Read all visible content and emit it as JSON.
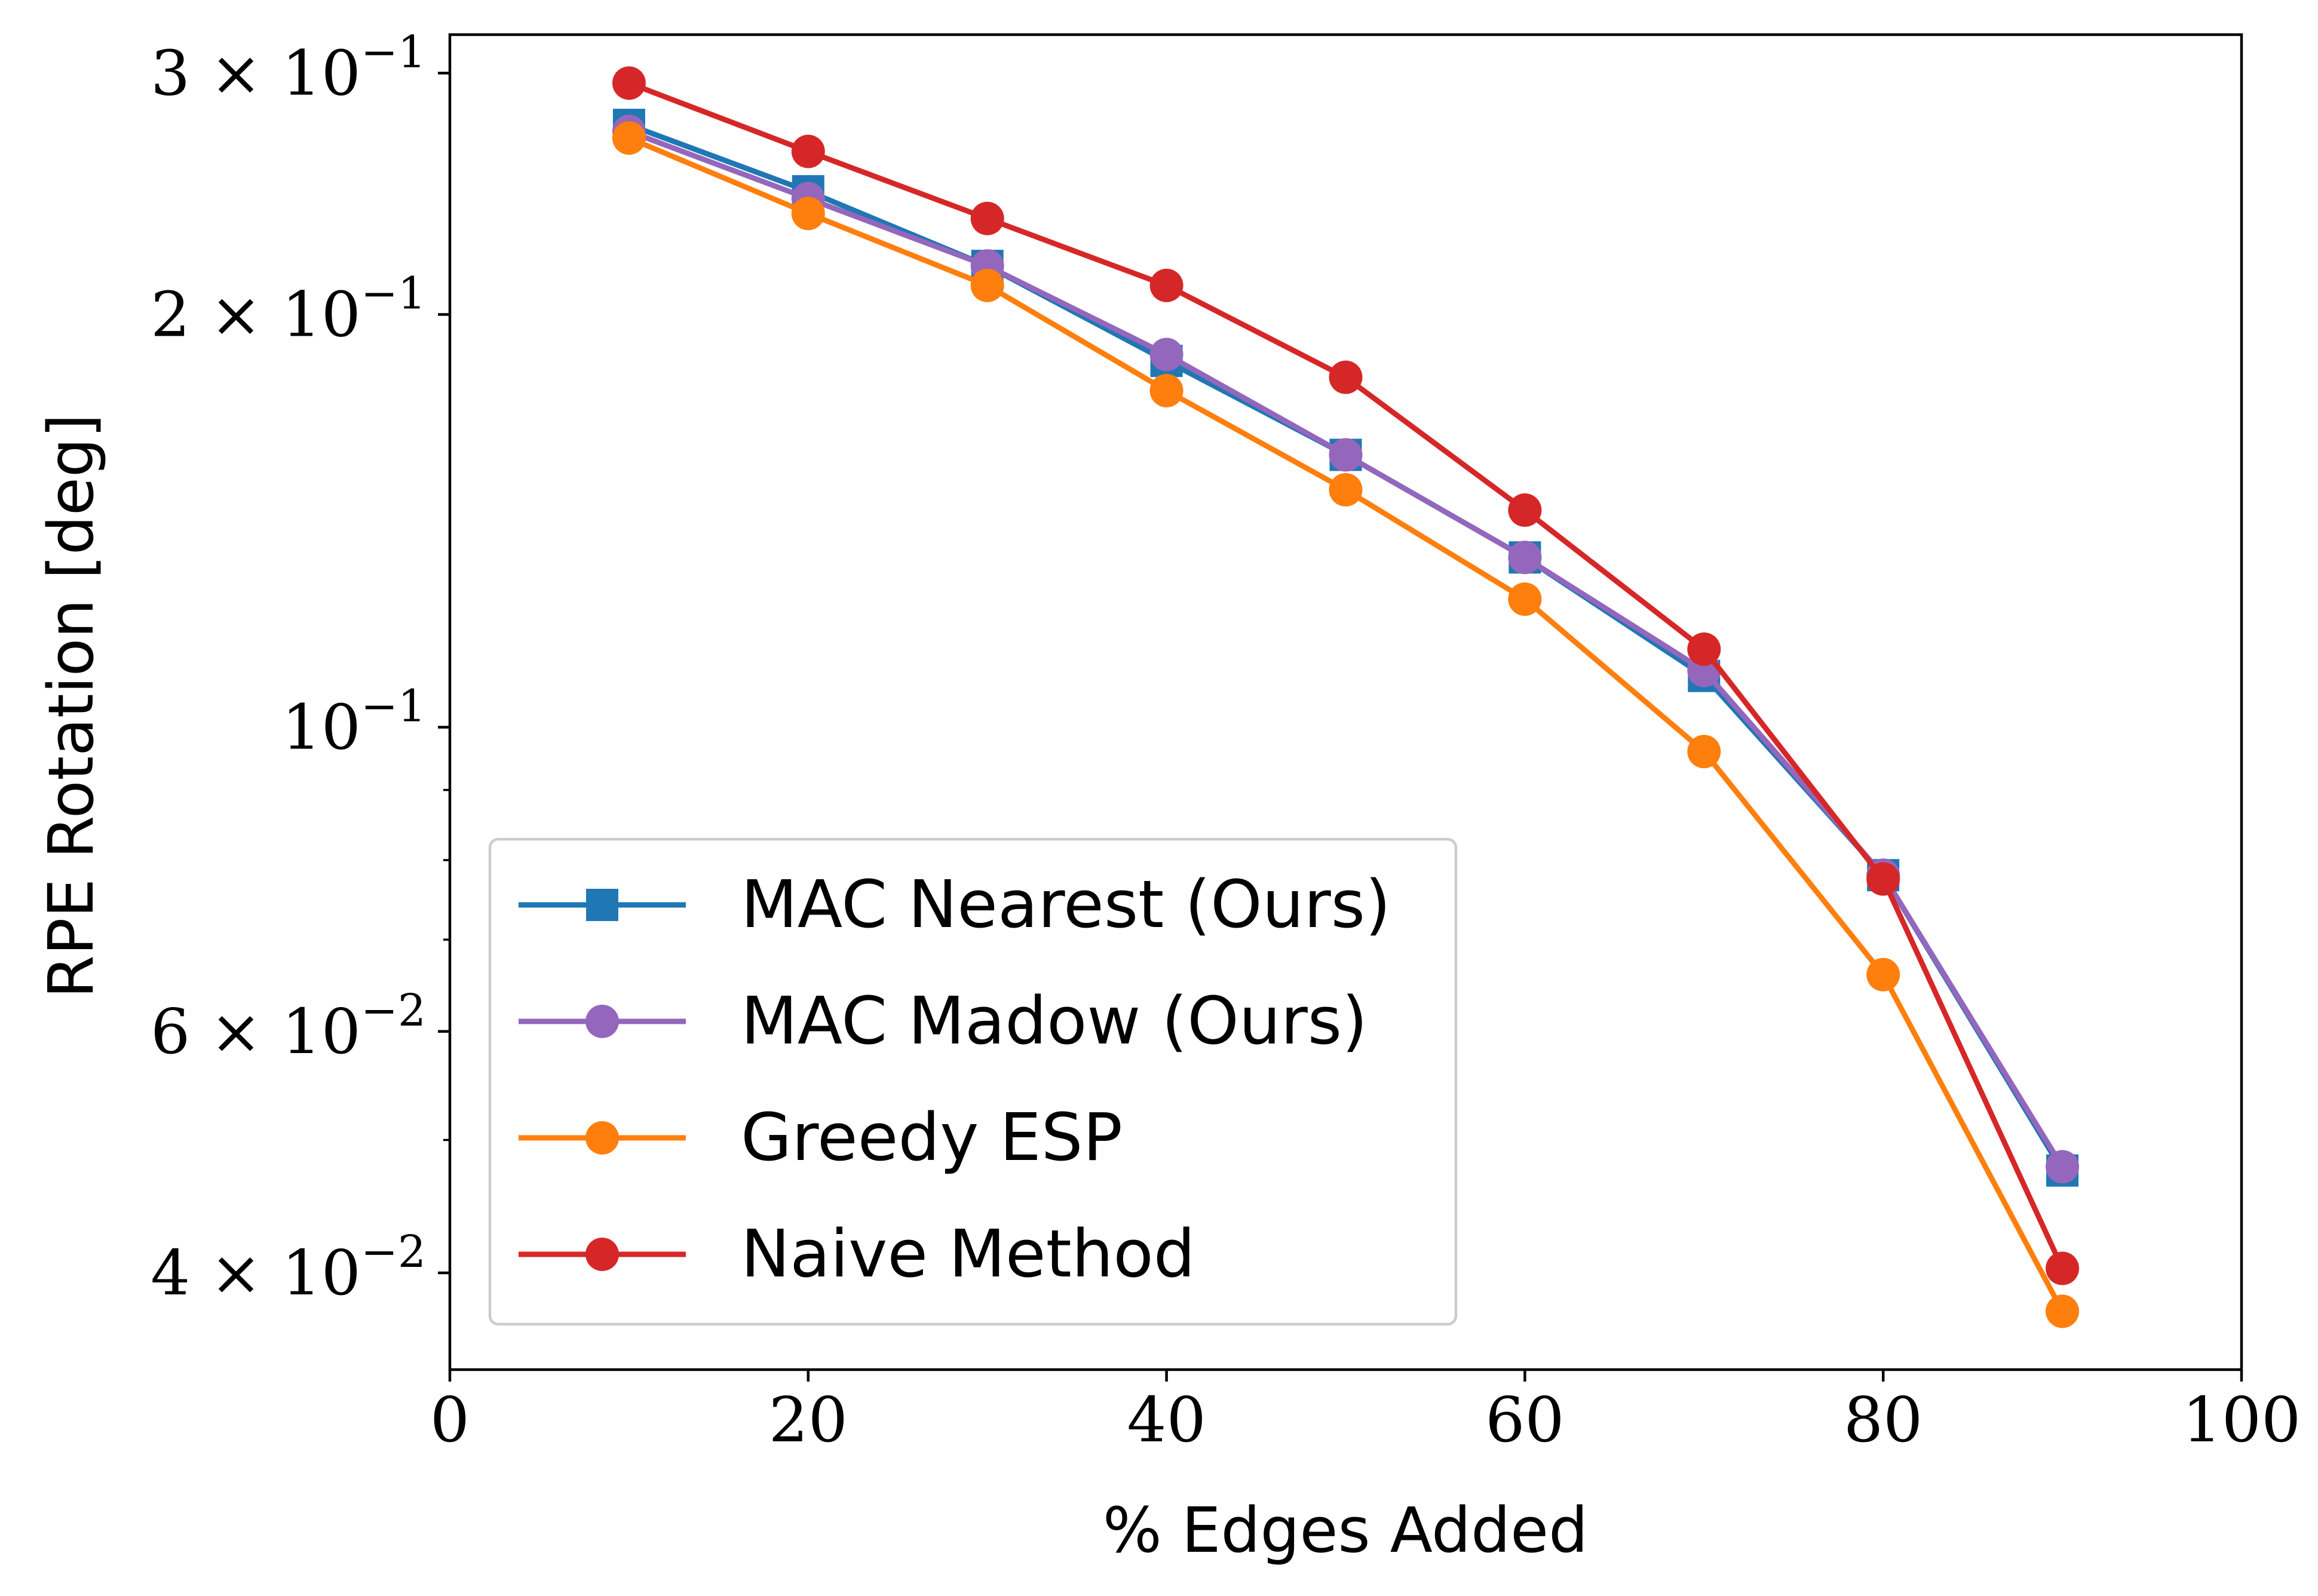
{
  "chart_data": {
    "type": "line",
    "title": "",
    "xlabel": "% Edges Added",
    "ylabel": "RPE Rotation [deg]",
    "yscale": "log",
    "xlim": [
      0,
      100
    ],
    "ylim": [
      0.034,
      0.32
    ],
    "x": [
      10,
      20,
      30,
      40,
      50,
      60,
      70,
      80,
      90
    ],
    "x_ticks": [
      {
        "value": 0,
        "label": "0"
      },
      {
        "value": 20,
        "label": "20"
      },
      {
        "value": 40,
        "label": "40"
      },
      {
        "value": 60,
        "label": "60"
      },
      {
        "value": 80,
        "label": "80"
      },
      {
        "value": 100,
        "label": "100"
      }
    ],
    "y_ticks": [
      {
        "value": 0.3,
        "mantissa": "3 × 10",
        "exp": "−1"
      },
      {
        "value": 0.2,
        "mantissa": "2 × 10",
        "exp": "−1"
      },
      {
        "value": 0.1,
        "mantissa": "10",
        "exp": "−1"
      },
      {
        "value": 0.06,
        "mantissa": "6 × 10",
        "exp": "−2"
      },
      {
        "value": 0.04,
        "mantissa": "4 × 10",
        "exp": "−2"
      }
    ],
    "y_minor_ticks": [
      0.09,
      0.08,
      0.07,
      0.05
    ],
    "legend_position": "lower-left",
    "series": [
      {
        "name": "MAC Nearest (Ours)",
        "color": "#1f77b4",
        "marker": "square",
        "values": [
          0.275,
          0.246,
          0.217,
          0.185,
          0.158,
          0.133,
          0.109,
          0.078,
          0.0475
        ]
      },
      {
        "name": "MAC Madow (Ours)",
        "color": "#9467bd",
        "marker": "circle",
        "values": [
          0.272,
          0.243,
          0.217,
          0.187,
          0.158,
          0.133,
          0.11,
          0.078,
          0.0478
        ]
      },
      {
        "name": "Greedy ESP",
        "color": "#ff7f0e",
        "marker": "circle",
        "values": [
          0.269,
          0.237,
          0.21,
          0.176,
          0.149,
          0.124,
          0.096,
          0.066,
          0.0375
        ]
      },
      {
        "name": "Naive Method",
        "color": "#d62728",
        "marker": "circle",
        "values": [
          0.295,
          0.263,
          0.235,
          0.21,
          0.18,
          0.144,
          0.114,
          0.0775,
          0.0403
        ]
      }
    ]
  }
}
